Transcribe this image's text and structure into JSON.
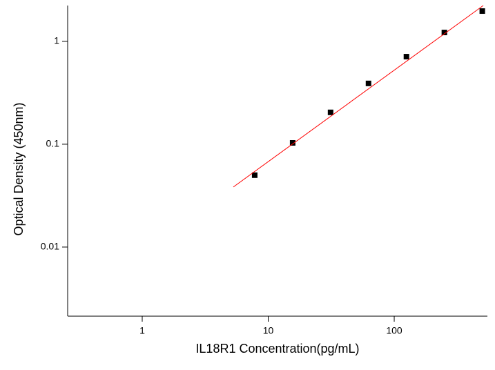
{
  "chart_data": {
    "type": "scatter",
    "xlabel": "IL18R1 Concentration(pg/mL)",
    "ylabel": "Optical Density (450nm)",
    "xscale": "log",
    "yscale": "log",
    "xlim": [
      0.256,
      549
    ],
    "ylim": [
      0.00213,
      2.23
    ],
    "xticks": [
      1,
      10,
      100
    ],
    "yticks": [
      0.01,
      0.1,
      1
    ],
    "series": [
      {
        "style": "markers",
        "color": "#000000",
        "x": [
          7.81,
          15.63,
          31.25,
          62.5,
          125,
          250,
          500
        ],
        "values": [
          0.05,
          0.103,
          0.204,
          0.39,
          0.71,
          1.22,
          1.97
        ]
      },
      {
        "style": "line",
        "color": "#ff0000",
        "x": [
          5.29,
          509
        ],
        "values": [
          0.0384,
          2.23
        ]
      }
    ]
  }
}
